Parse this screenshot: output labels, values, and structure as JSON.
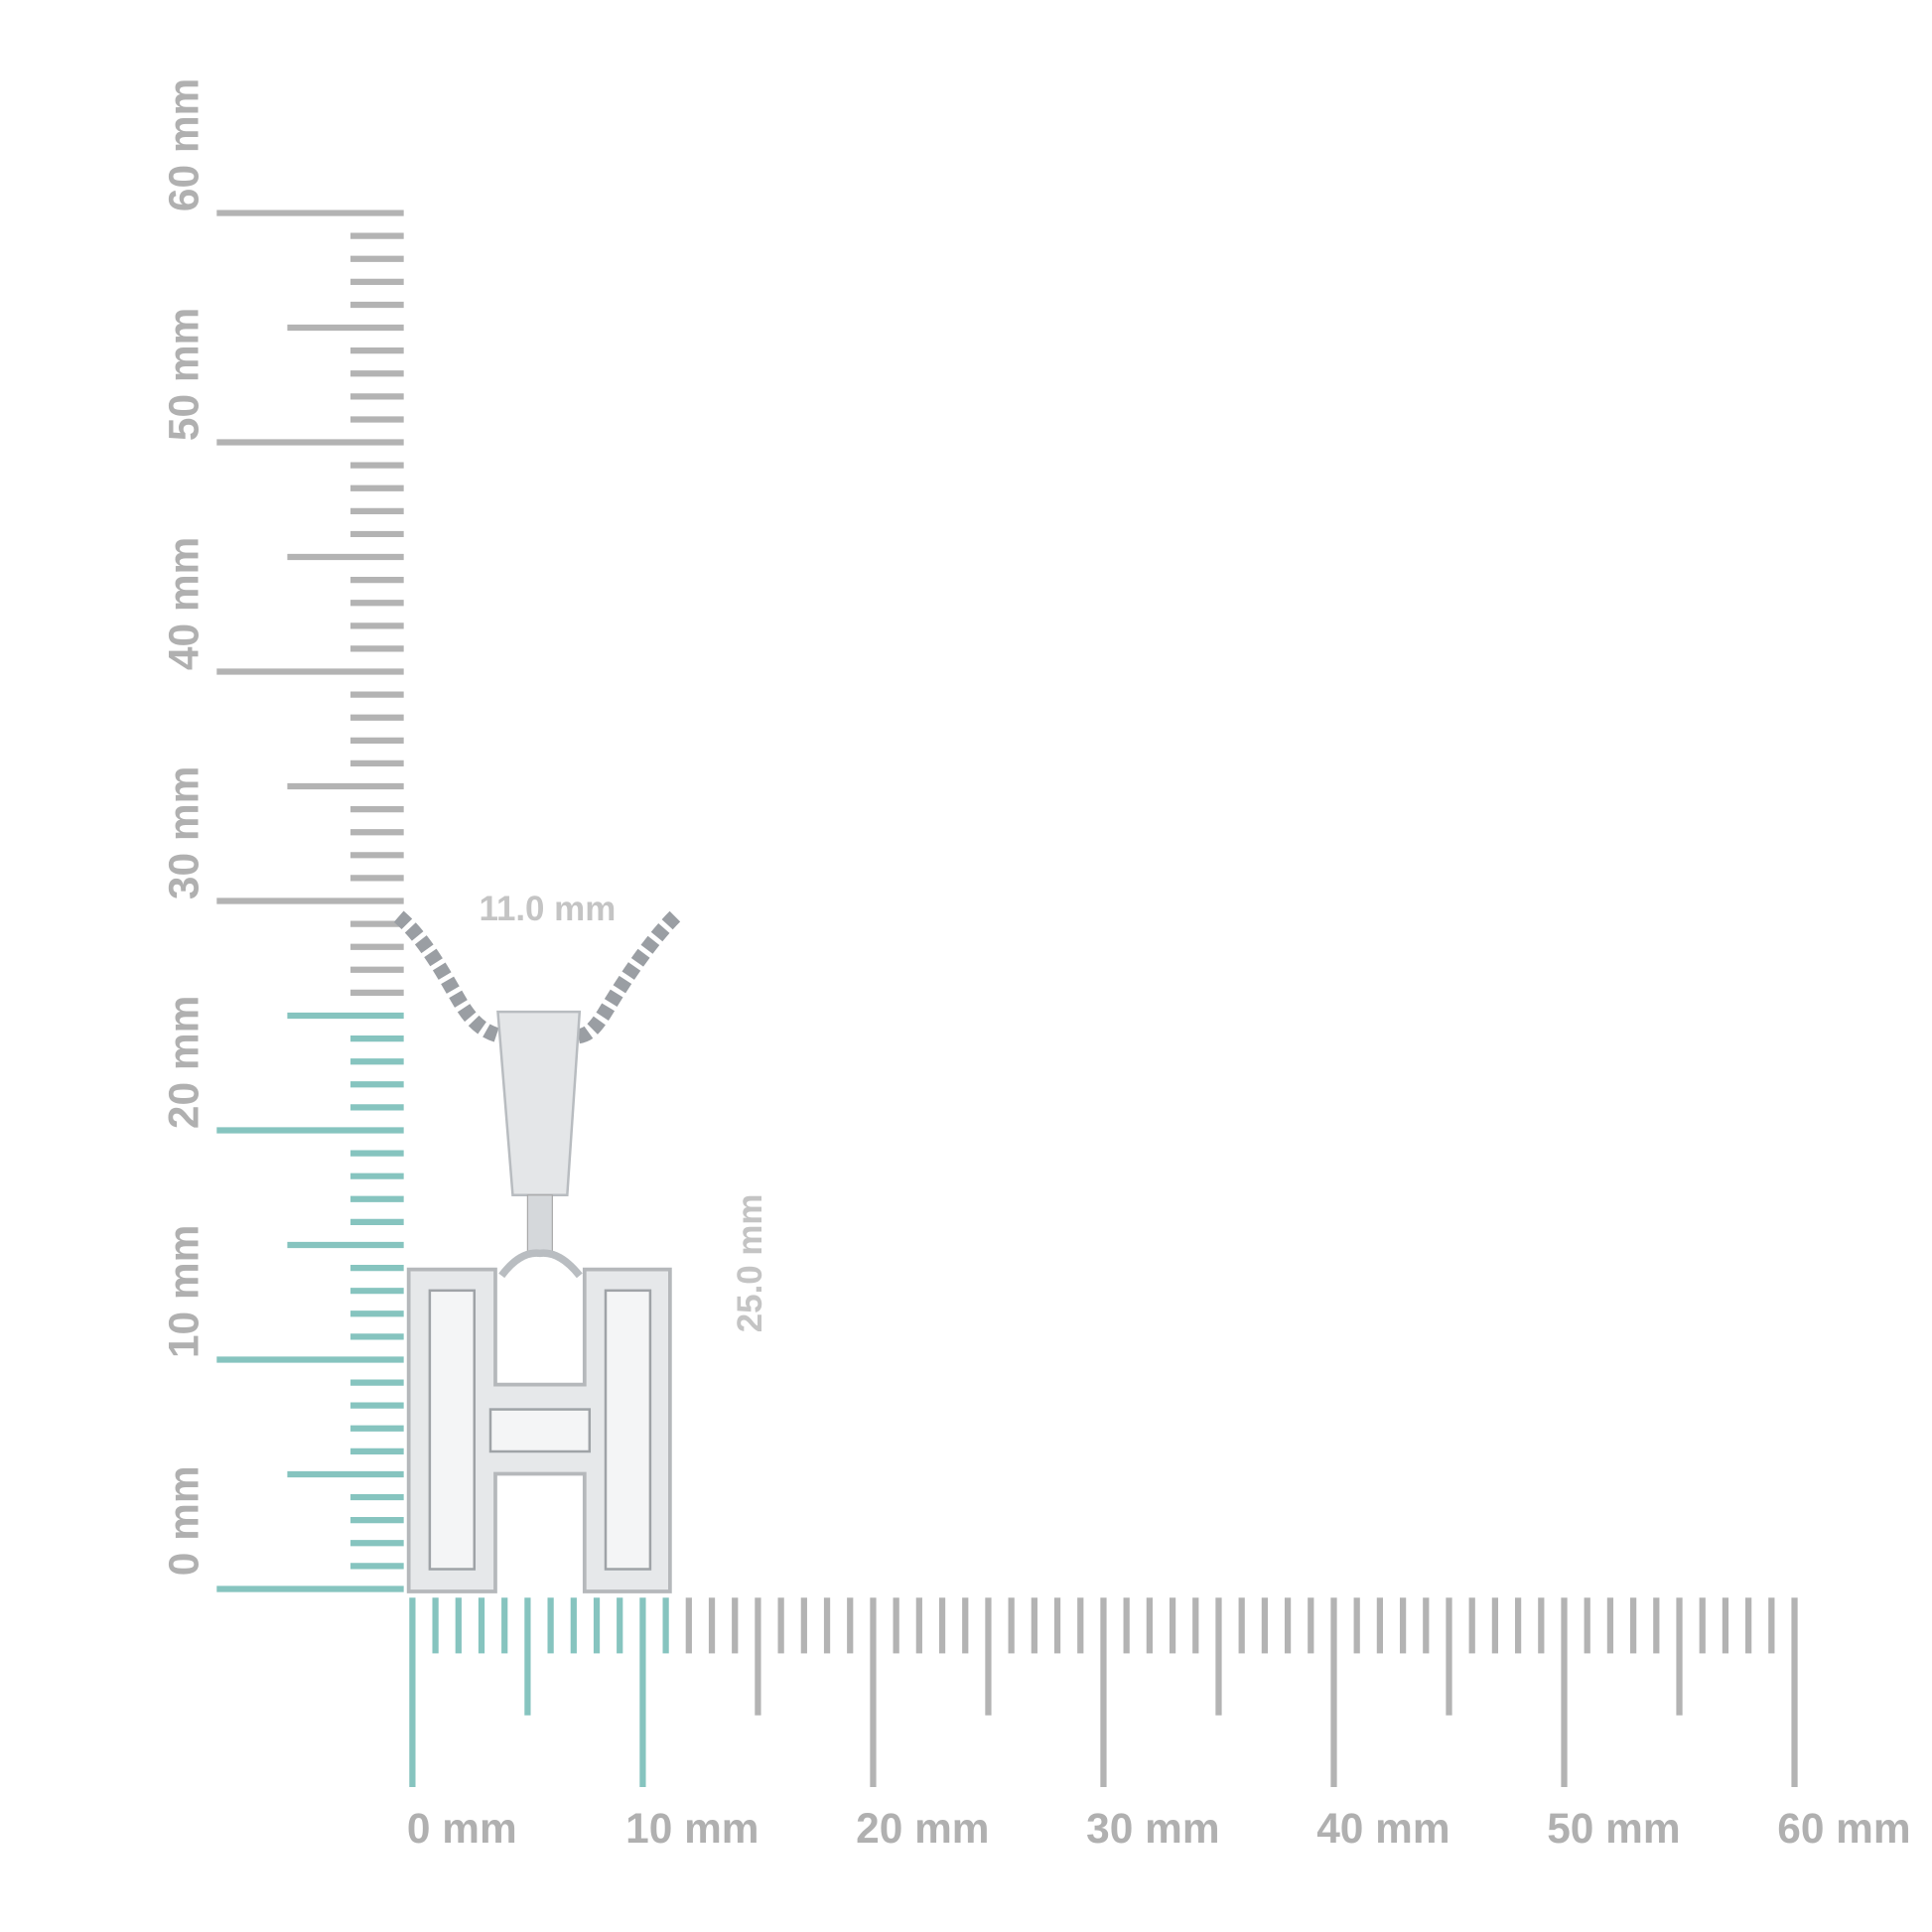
{
  "vertical_ruler": {
    "labels": [
      "0 mm",
      "10 mm",
      "20 mm",
      "30 mm",
      "40 mm",
      "50 mm",
      "60 mm"
    ]
  },
  "horizontal_ruler": {
    "labels": [
      "0 mm",
      "10 mm",
      "20 mm",
      "30 mm",
      "40 mm",
      "50 mm",
      "60 mm"
    ]
  },
  "dimensions": {
    "width": "11.0 mm",
    "height": "25.0 mm"
  }
}
